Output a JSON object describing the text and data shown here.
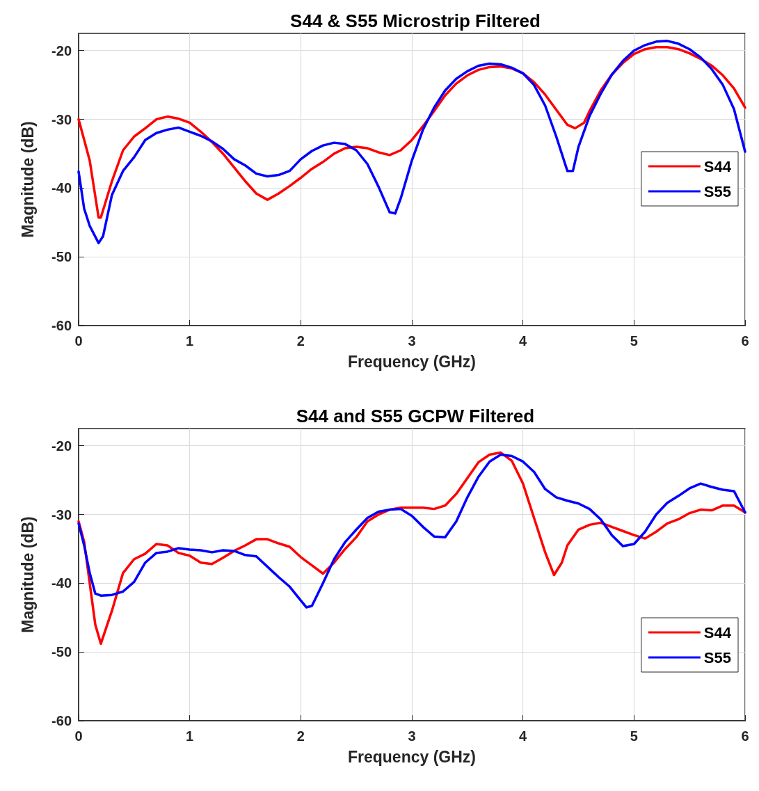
{
  "chart_data": [
    {
      "type": "line",
      "title": "S44 & S55 Microstrip Filtered",
      "xlabel": "Frequency (GHz)",
      "ylabel": "Magnitude (dB)",
      "xlim": [
        0,
        6
      ],
      "xticks": [
        0,
        1,
        2,
        3,
        4,
        5,
        6
      ],
      "ylim": [
        -60,
        -17.5
      ],
      "yticks": [
        -60,
        -50,
        -40,
        -30,
        -20
      ],
      "grid": true,
      "legend": "right",
      "line_style": "solid",
      "marker": "none",
      "series": [
        {
          "name": "S44",
          "color": "#ff0000",
          "x": [
            0,
            0.1,
            0.18,
            0.2,
            0.3,
            0.4,
            0.5,
            0.6,
            0.7,
            0.8,
            0.9,
            1.0,
            1.1,
            1.2,
            1.3,
            1.4,
            1.5,
            1.6,
            1.7,
            1.8,
            1.9,
            2.0,
            2.1,
            2.2,
            2.3,
            2.4,
            2.5,
            2.6,
            2.7,
            2.8,
            2.9,
            3.0,
            3.1,
            3.2,
            3.3,
            3.4,
            3.5,
            3.6,
            3.7,
            3.8,
            3.9,
            4.0,
            4.1,
            4.2,
            4.3,
            4.4,
            4.47,
            4.55,
            4.6,
            4.7,
            4.8,
            4.9,
            5.0,
            5.1,
            5.2,
            5.3,
            5.4,
            5.5,
            5.6,
            5.7,
            5.8,
            5.9,
            6.0
          ],
          "values": [
            -30,
            -36,
            -44.3,
            -44.3,
            -39,
            -34.5,
            -32.5,
            -31.3,
            -30,
            -29.6,
            -29.9,
            -30.5,
            -31.8,
            -33.3,
            -35,
            -37,
            -39,
            -40.8,
            -41.7,
            -40.8,
            -39.7,
            -38.5,
            -37.2,
            -36.2,
            -35,
            -34.2,
            -34,
            -34.2,
            -34.8,
            -35.2,
            -34.5,
            -33,
            -31,
            -28.8,
            -26.5,
            -24.8,
            -23.6,
            -22.8,
            -22.4,
            -22.3,
            -22.6,
            -23.3,
            -24.6,
            -26.4,
            -28.6,
            -30.8,
            -31.3,
            -30.5,
            -28.8,
            -25.8,
            -23.5,
            -21.8,
            -20.5,
            -19.8,
            -19.5,
            -19.5,
            -19.8,
            -20.4,
            -21.2,
            -22.2,
            -23.6,
            -25.5,
            -28.3
          ]
        },
        {
          "name": "S55",
          "color": "#0000ff",
          "x": [
            0,
            0.05,
            0.1,
            0.18,
            0.22,
            0.3,
            0.4,
            0.5,
            0.6,
            0.7,
            0.8,
            0.9,
            1.0,
            1.1,
            1.2,
            1.3,
            1.4,
            1.5,
            1.6,
            1.7,
            1.8,
            1.9,
            2.0,
            2.1,
            2.2,
            2.3,
            2.4,
            2.5,
            2.6,
            2.7,
            2.8,
            2.85,
            2.9,
            3.0,
            3.1,
            3.2,
            3.3,
            3.4,
            3.5,
            3.6,
            3.7,
            3.8,
            3.9,
            4.0,
            4.1,
            4.2,
            4.3,
            4.4,
            4.45,
            4.5,
            4.6,
            4.7,
            4.8,
            4.9,
            5.0,
            5.1,
            5.2,
            5.3,
            5.4,
            5.5,
            5.6,
            5.7,
            5.8,
            5.9,
            6.0
          ],
          "values": [
            -37.6,
            -43,
            -45.5,
            -48,
            -47,
            -41,
            -37.5,
            -35.5,
            -33,
            -32,
            -31.5,
            -31.2,
            -31.8,
            -32.4,
            -33.2,
            -34.3,
            -35.8,
            -36.7,
            -37.9,
            -38.3,
            -38.1,
            -37.5,
            -35.8,
            -34.6,
            -33.8,
            -33.4,
            -33.6,
            -34.5,
            -36.5,
            -39.8,
            -43.5,
            -43.7,
            -41.5,
            -36,
            -31.5,
            -28.3,
            -25.8,
            -24.1,
            -23,
            -22.2,
            -21.9,
            -22,
            -22.5,
            -23.3,
            -25,
            -28,
            -32.5,
            -37.5,
            -37.5,
            -34,
            -29.5,
            -26.3,
            -23.5,
            -21.5,
            -20,
            -19.2,
            -18.7,
            -18.6,
            -19,
            -19.8,
            -21,
            -22.7,
            -25,
            -28.5,
            -34.7
          ]
        }
      ]
    },
    {
      "type": "line",
      "title": "S44 and S55 GCPW Filtered",
      "xlabel": "Frequency (GHz)",
      "ylabel": "Magnitude (dB)",
      "xlim": [
        0,
        6
      ],
      "xticks": [
        0,
        1,
        2,
        3,
        4,
        5,
        6
      ],
      "ylim": [
        -60,
        -17.5
      ],
      "yticks": [
        -60,
        -50,
        -40,
        -30,
        -20
      ],
      "grid": true,
      "legend": "bottom right",
      "line_style": "solid",
      "marker": "none",
      "series": [
        {
          "name": "S44",
          "color": "#ff0000",
          "x": [
            0,
            0.05,
            0.1,
            0.15,
            0.2,
            0.3,
            0.4,
            0.5,
            0.6,
            0.7,
            0.8,
            0.9,
            1.0,
            1.1,
            1.2,
            1.3,
            1.4,
            1.5,
            1.6,
            1.7,
            1.8,
            1.9,
            2.0,
            2.1,
            2.2,
            2.3,
            2.4,
            2.5,
            2.6,
            2.7,
            2.8,
            2.9,
            3.0,
            3.1,
            3.2,
            3.3,
            3.4,
            3.5,
            3.6,
            3.7,
            3.8,
            3.9,
            4.0,
            4.1,
            4.2,
            4.28,
            4.35,
            4.4,
            4.5,
            4.6,
            4.7,
            4.8,
            4.9,
            5.0,
            5.1,
            5.2,
            5.3,
            5.4,
            5.5,
            5.6,
            5.7,
            5.8,
            5.9,
            6.0
          ],
          "values": [
            -31,
            -34,
            -40,
            -46,
            -48.8,
            -44,
            -38.5,
            -36.5,
            -35.7,
            -34.3,
            -34.5,
            -35.6,
            -36,
            -37,
            -37.2,
            -36.3,
            -35.3,
            -34.5,
            -33.6,
            -33.6,
            -34.2,
            -34.7,
            -36.2,
            -37.4,
            -38.6,
            -37,
            -35,
            -33.3,
            -31,
            -30,
            -29.3,
            -29,
            -29,
            -29,
            -29.2,
            -28.7,
            -27,
            -24.7,
            -22.4,
            -21.3,
            -21,
            -22.2,
            -25.5,
            -30.5,
            -35.5,
            -38.8,
            -37,
            -34.5,
            -32.2,
            -31.5,
            -31.2,
            -31.8,
            -32.4,
            -33,
            -33.5,
            -32.5,
            -31.3,
            -30.7,
            -29.8,
            -29.3,
            -29.4,
            -28.7,
            -28.7,
            -29.7
          ]
        },
        {
          "name": "S55",
          "color": "#0000ff",
          "x": [
            0,
            0.05,
            0.1,
            0.15,
            0.2,
            0.3,
            0.4,
            0.5,
            0.6,
            0.7,
            0.8,
            0.9,
            1.0,
            1.1,
            1.2,
            1.3,
            1.4,
            1.5,
            1.6,
            1.7,
            1.8,
            1.9,
            2.0,
            2.05,
            2.1,
            2.2,
            2.3,
            2.4,
            2.5,
            2.6,
            2.7,
            2.8,
            2.9,
            3.0,
            3.1,
            3.2,
            3.3,
            3.4,
            3.5,
            3.6,
            3.7,
            3.8,
            3.9,
            4.0,
            4.1,
            4.2,
            4.3,
            4.4,
            4.5,
            4.6,
            4.7,
            4.8,
            4.9,
            5.0,
            5.1,
            5.2,
            5.3,
            5.4,
            5.5,
            5.6,
            5.7,
            5.8,
            5.9,
            6.0
          ],
          "values": [
            -31.3,
            -34.5,
            -38.5,
            -41.5,
            -41.8,
            -41.7,
            -41.2,
            -39.8,
            -37,
            -35.6,
            -35.4,
            -34.9,
            -35.1,
            -35.2,
            -35.5,
            -35.2,
            -35.3,
            -35.9,
            -36.1,
            -37.6,
            -39.1,
            -40.5,
            -42.5,
            -43.5,
            -43.3,
            -40,
            -36.5,
            -34,
            -32.2,
            -30.5,
            -29.6,
            -29.3,
            -29.2,
            -30.2,
            -31.8,
            -33.2,
            -33.3,
            -31,
            -27.5,
            -24.5,
            -22.3,
            -21.3,
            -21.5,
            -22.3,
            -23.8,
            -26.3,
            -27.5,
            -28,
            -28.4,
            -29.2,
            -30.7,
            -33,
            -34.6,
            -34.3,
            -32.5,
            -30,
            -28.3,
            -27.3,
            -26.2,
            -25.5,
            -26,
            -26.4,
            -26.6,
            -29.7
          ]
        }
      ]
    }
  ]
}
